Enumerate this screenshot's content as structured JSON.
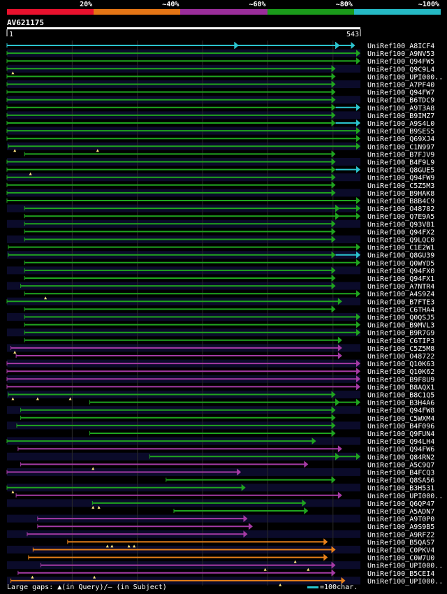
{
  "legend": {
    "labels": [
      "20%",
      "~40%",
      "~60%",
      "~80%",
      "~100%"
    ],
    "colors": [
      "#e8112d",
      "#e47515",
      "#9a2d9a",
      "#1a9a1a",
      "#25b9c4"
    ]
  },
  "query": {
    "name": "AV621175",
    "start_label": "1",
    "end_label": "543",
    "length": 543
  },
  "footer": {
    "gaps_text": "Large gaps: ▲(in Query)/– (in Subject)",
    "scale_text": "=100char."
  },
  "chart_data": {
    "type": "alignment",
    "x_range": [
      1,
      543
    ],
    "hits": [
      {
        "name": "UniRef100_A8ICF4",
        "color": "cyan",
        "start": 1,
        "end": 535,
        "extra_arrows": [
          350,
          505
        ]
      },
      {
        "name": "UniRef100_A9NV53",
        "color": "green",
        "start": 1,
        "end": 543
      },
      {
        "name": "UniRef100_Q94FW5",
        "color": "green",
        "start": 1,
        "end": 543
      },
      {
        "name": "UniRef100_Q9C9L4",
        "color": "green",
        "start": 1,
        "end": 505,
        "query_gaps": [
          10
        ]
      },
      {
        "name": "UniRef100_UPI000..",
        "color": "green",
        "start": 1,
        "end": 505
      },
      {
        "name": "UniRef100_A7PF40",
        "color": "green",
        "start": 1,
        "end": 505
      },
      {
        "name": "UniRef100_Q94FW7",
        "color": "green",
        "start": 1,
        "end": 505
      },
      {
        "name": "UniRef100_B6TDC9",
        "color": "green",
        "start": 1,
        "end": 505
      },
      {
        "name": "UniRef100_A9T3A8",
        "color": "green",
        "start": 1,
        "end": 505,
        "ext": {
          "color": "cyan",
          "end": 543
        }
      },
      {
        "name": "UniRef100_B9IMZ7",
        "color": "green",
        "start": 1,
        "end": 505
      },
      {
        "name": "UniRef100_A9S4L0",
        "color": "green",
        "start": 1,
        "end": 505,
        "ext": {
          "color": "cyan",
          "end": 543
        }
      },
      {
        "name": "UniRef100_B9SES5",
        "color": "green",
        "start": 1,
        "end": 543
      },
      {
        "name": "UniRef100_Q69XJ4",
        "color": "green",
        "start": 1,
        "end": 543
      },
      {
        "name": "UniRef100_C1N997",
        "color": "green",
        "start": 3,
        "end": 543,
        "query_gaps": [
          13,
          140
        ]
      },
      {
        "name": "UniRef100_B7FJV9",
        "color": "green",
        "start": 28,
        "end": 505
      },
      {
        "name": "UniRef100_B4F9L9",
        "color": "green",
        "start": 1,
        "end": 505
      },
      {
        "name": "UniRef100_Q8GUE5",
        "color": "green",
        "start": 1,
        "end": 505,
        "query_gaps": [
          37
        ],
        "ext": {
          "color": "cyan",
          "end": 543
        }
      },
      {
        "name": "UniRef100_Q94FW9",
        "color": "green",
        "start": 1,
        "end": 505
      },
      {
        "name": "UniRef100_C5Z5M3",
        "color": "green",
        "start": 1,
        "end": 505
      },
      {
        "name": "UniRef100_B9HAK8",
        "color": "green",
        "start": 1,
        "end": 505
      },
      {
        "name": "UniRef100_B8B4C9",
        "color": "green",
        "start": 1,
        "end": 543
      },
      {
        "name": "UniRef100_O48782",
        "color": "green",
        "start": 28,
        "end": 543,
        "extra_arrows": [
          505
        ]
      },
      {
        "name": "UniRef100_Q7E9A5",
        "color": "green",
        "start": 28,
        "end": 543,
        "extra_arrows": [
          505
        ]
      },
      {
        "name": "UniRef100_Q93VB1",
        "color": "green",
        "start": 28,
        "end": 505
      },
      {
        "name": "UniRef100_Q94FX2",
        "color": "green",
        "start": 28,
        "end": 505
      },
      {
        "name": "UniRef100_Q9LQC0",
        "color": "green",
        "start": 28,
        "end": 505
      },
      {
        "name": "UniRef100_C1E2W1",
        "color": "green",
        "start": 3,
        "end": 543
      },
      {
        "name": "UniRef100_Q8GU39",
        "color": "green",
        "start": 3,
        "end": 505,
        "ext": {
          "color": "cyan",
          "end": 543
        }
      },
      {
        "name": "UniRef100_Q0WYD5",
        "color": "green",
        "start": 28,
        "end": 543
      },
      {
        "name": "UniRef100_Q94FX0",
        "color": "green",
        "start": 28,
        "end": 505
      },
      {
        "name": "UniRef100_Q94FX1",
        "color": "green",
        "start": 28,
        "end": 505
      },
      {
        "name": "UniRef100_A7NTR4",
        "color": "green",
        "start": 22,
        "end": 505
      },
      {
        "name": "UniRef100_A4S9Z4",
        "color": "green",
        "start": 28,
        "end": 543,
        "query_gaps": [
          60
        ]
      },
      {
        "name": "UniRef100_B7FTE3",
        "color": "green",
        "start": 1,
        "end": 515
      },
      {
        "name": "UniRef100_C6THA4",
        "color": "green",
        "start": 28,
        "end": 505
      },
      {
        "name": "UniRef100_Q0QSJ5",
        "color": "green",
        "start": 28,
        "end": 543
      },
      {
        "name": "UniRef100_B9MVL3",
        "color": "green",
        "start": 28,
        "end": 543
      },
      {
        "name": "UniRef100_B9R7G9",
        "color": "green",
        "start": 28,
        "end": 543
      },
      {
        "name": "UniRef100_C6TIP3",
        "color": "green",
        "start": 28,
        "end": 515
      },
      {
        "name": "UniRef100_C5Z5M8",
        "color": "magenta",
        "start": 7,
        "end": 515,
        "query_gaps": [
          13
        ]
      },
      {
        "name": "UniRef100_O48722",
        "color": "magenta",
        "start": 15,
        "end": 515
      },
      {
        "name": "UniRef100_Q10K63",
        "color": "magenta",
        "start": 1,
        "end": 543
      },
      {
        "name": "UniRef100_Q10K62",
        "color": "magenta",
        "start": 1,
        "end": 543
      },
      {
        "name": "UniRef100_B9F8U9",
        "color": "magenta",
        "start": 1,
        "end": 543
      },
      {
        "name": "UniRef100_B8AQX1",
        "color": "magenta",
        "start": 1,
        "end": 543
      },
      {
        "name": "UniRef100_B8C1Q5",
        "color": "green",
        "start": 3,
        "end": 505,
        "query_gaps": [
          10,
          48,
          98
        ]
      },
      {
        "name": "UniRef100_B3H4A6",
        "color": "green",
        "start": 128,
        "end": 543,
        "extra_arrows": [
          505
        ]
      },
      {
        "name": "UniRef100_Q94FW8",
        "color": "green",
        "start": 22,
        "end": 505
      },
      {
        "name": "UniRef100_C5WXM4",
        "color": "green",
        "start": 22,
        "end": 505
      },
      {
        "name": "UniRef100_B4F096",
        "color": "green",
        "start": 16,
        "end": 505
      },
      {
        "name": "UniRef100_Q9FUN4",
        "color": "green",
        "start": 128,
        "end": 505
      },
      {
        "name": "UniRef100_Q94LH4",
        "color": "green",
        "start": 1,
        "end": 475
      },
      {
        "name": "UniRef100_Q94FW6",
        "color": "magenta",
        "start": 18,
        "end": 515
      },
      {
        "name": "UniRef100_Q84RN2",
        "color": "green",
        "start": 220,
        "end": 543,
        "extra_arrows": [
          505
        ]
      },
      {
        "name": "UniRef100_A5C9Q7",
        "color": "magenta",
        "start": 22,
        "end": 463,
        "query_gaps": [
          133
        ]
      },
      {
        "name": "UniRef100_B4FCQ3",
        "color": "magenta",
        "start": 1,
        "end": 360
      },
      {
        "name": "UniRef100_Q8SA56",
        "color": "green",
        "start": 245,
        "end": 505
      },
      {
        "name": "UniRef100_B3H531",
        "color": "green",
        "start": 1,
        "end": 367,
        "query_gaps": [
          10
        ]
      },
      {
        "name": "UniRef100_UPI000..",
        "color": "magenta",
        "start": 15,
        "end": 515
      },
      {
        "name": "UniRef100_Q6QP47",
        "color": "green",
        "start": 132,
        "end": 460,
        "query_gaps": [
          133,
          142
        ]
      },
      {
        "name": "UniRef100_A5ADN7",
        "color": "green",
        "start": 257,
        "end": 463
      },
      {
        "name": "UniRef100_A9T0P0",
        "color": "magenta",
        "start": 48,
        "end": 370
      },
      {
        "name": "UniRef100_A9S9B5",
        "color": "magenta",
        "start": 48,
        "end": 378
      },
      {
        "name": "UniRef100_A9RFZ2",
        "color": "magenta",
        "start": 32,
        "end": 370
      },
      {
        "name": "UniRef100_B5QAS7",
        "color": "orange",
        "start": 94,
        "end": 493,
        "query_gaps": [
          155,
          162,
          188,
          196
        ]
      },
      {
        "name": "UniRef100_C0PKV4",
        "color": "orange",
        "start": 41,
        "end": 505
      },
      {
        "name": "UniRef100_C0W7U0",
        "color": "orange",
        "start": 34,
        "end": 493,
        "query_gaps": [
          443
        ]
      },
      {
        "name": "UniRef100_UPI000..",
        "color": "magenta",
        "start": 53,
        "end": 505,
        "query_gaps": [
          397,
          463
        ]
      },
      {
        "name": "UniRef100_B5CEI4",
        "color": "magenta",
        "start": 18,
        "end": 505,
        "query_gaps": [
          40,
          135
        ]
      },
      {
        "name": "UniRef100_UPI000..",
        "color": "orange",
        "start": 7,
        "end": 520,
        "query_gaps": [
          420
        ]
      }
    ]
  }
}
